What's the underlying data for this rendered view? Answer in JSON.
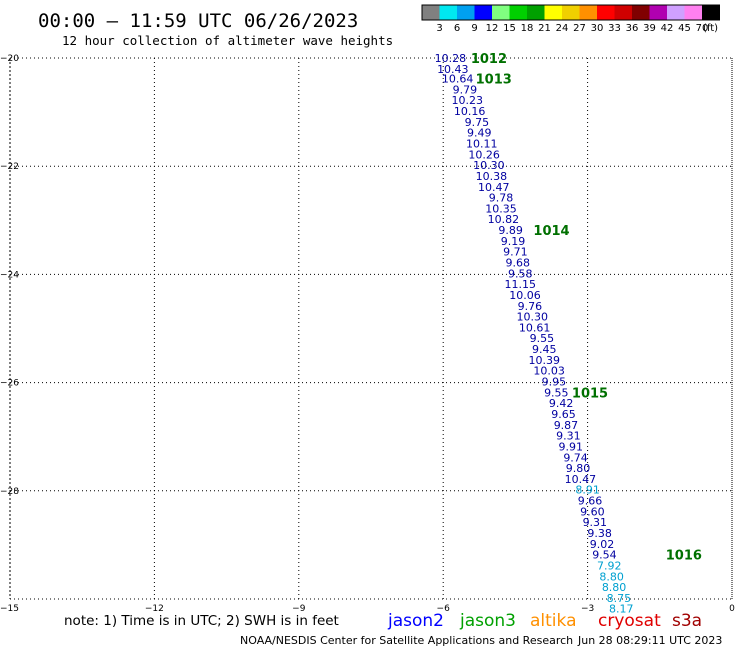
{
  "header": {
    "title": "00:00 – 11:59 UTC 06/26/2023",
    "subtitle": "12 hour collection of altimeter wave heights"
  },
  "legend": {
    "labels": [
      "3",
      "6",
      "9",
      "12",
      "15",
      "18",
      "21",
      "24",
      "27",
      "30",
      "33",
      "36",
      "39",
      "42",
      "45",
      "70"
    ],
    "unit": "(ft)",
    "colors": [
      "#808080",
      "#00e8f0",
      "#00a0f0",
      "#0000ff",
      "#80ff80",
      "#00d000",
      "#00a000",
      "#ffff00",
      "#f0d000",
      "#ff9000",
      "#ff0000",
      "#d00000",
      "#800000",
      "#b000b0",
      "#d0a0ff",
      "#ff80f0",
      "#000000"
    ]
  },
  "footer": {
    "note": "note: 1) Time is in UTC; 2) SWH is in feet",
    "satellites": [
      {
        "name": "jason2",
        "color": "#0000ff"
      },
      {
        "name": "jason3",
        "color": "#00a000"
      },
      {
        "name": "altika",
        "color": "#ff9000"
      },
      {
        "name": "cryosat",
        "color": "#e00000"
      },
      {
        "name": "s3a",
        "color": "#a00000"
      }
    ],
    "credit": "NOAA/NESDIS Center for Satellite Applications and Research",
    "timestamp": "Jun 28 08:29:11 UTC 2023"
  },
  "chart_data": {
    "type": "scatter",
    "title": "00:00 – 11:59 UTC 06/26/2023",
    "xlim": [
      -15,
      0
    ],
    "ylim": [
      -30,
      -20
    ],
    "x_ticks": [
      -15,
      -12,
      -9,
      -6,
      -3,
      0
    ],
    "y_ticks": [
      -30,
      -28,
      -26,
      -24,
      -22,
      -20
    ],
    "grid": true,
    "colors": {
      "jason3": "#0000a0",
      "altika": "#00a0d0",
      "time": "#007000"
    },
    "observations": [
      {
        "x": -5.85,
        "y": -20.0,
        "swh": "10.28",
        "sat": "jason3"
      },
      {
        "x": -5.8,
        "y": -20.2,
        "swh": "10.43",
        "sat": "jason3"
      },
      {
        "x": -5.7,
        "y": -20.38,
        "swh": "10.64",
        "sat": "jason3"
      },
      {
        "x": -5.55,
        "y": -20.58,
        "swh": "9.79",
        "sat": "jason3"
      },
      {
        "x": -5.5,
        "y": -20.78,
        "swh": "10.23",
        "sat": "jason3"
      },
      {
        "x": -5.45,
        "y": -20.98,
        "swh": "10.16",
        "sat": "jason3"
      },
      {
        "x": -5.3,
        "y": -21.18,
        "swh": "9.75",
        "sat": "jason3"
      },
      {
        "x": -5.25,
        "y": -21.38,
        "swh": "9.49",
        "sat": "jason3"
      },
      {
        "x": -5.2,
        "y": -21.58,
        "swh": "10.11",
        "sat": "jason3"
      },
      {
        "x": -5.15,
        "y": -21.78,
        "swh": "10.26",
        "sat": "jason3"
      },
      {
        "x": -5.05,
        "y": -21.98,
        "swh": "10.30",
        "sat": "jason3"
      },
      {
        "x": -5.0,
        "y": -22.18,
        "swh": "10.38",
        "sat": "jason3"
      },
      {
        "x": -4.95,
        "y": -22.38,
        "swh": "10.47",
        "sat": "jason3"
      },
      {
        "x": -4.8,
        "y": -22.58,
        "swh": "9.78",
        "sat": "jason3"
      },
      {
        "x": -4.8,
        "y": -22.78,
        "swh": "10.35",
        "sat": "jason3"
      },
      {
        "x": -4.75,
        "y": -22.98,
        "swh": "10.82",
        "sat": "jason3"
      },
      {
        "x": -4.6,
        "y": -23.18,
        "swh": "9.89",
        "sat": "jason3"
      },
      {
        "x": -4.55,
        "y": -23.38,
        "swh": "9.19",
        "sat": "jason3"
      },
      {
        "x": -4.5,
        "y": -23.58,
        "swh": "9.71",
        "sat": "jason3"
      },
      {
        "x": -4.45,
        "y": -23.78,
        "swh": "9.68",
        "sat": "jason3"
      },
      {
        "x": -4.4,
        "y": -23.98,
        "swh": "9.58",
        "sat": "jason3"
      },
      {
        "x": -4.4,
        "y": -24.18,
        "swh": "11.15",
        "sat": "jason3"
      },
      {
        "x": -4.3,
        "y": -24.38,
        "swh": "10.06",
        "sat": "jason3"
      },
      {
        "x": -4.2,
        "y": -24.58,
        "swh": "9.76",
        "sat": "jason3"
      },
      {
        "x": -4.15,
        "y": -24.78,
        "swh": "10.30",
        "sat": "jason3"
      },
      {
        "x": -4.1,
        "y": -24.98,
        "swh": "10.61",
        "sat": "jason3"
      },
      {
        "x": -3.95,
        "y": -25.18,
        "swh": "9.55",
        "sat": "jason3"
      },
      {
        "x": -3.9,
        "y": -25.38,
        "swh": "9.45",
        "sat": "jason3"
      },
      {
        "x": -3.9,
        "y": -25.58,
        "swh": "10.39",
        "sat": "jason3"
      },
      {
        "x": -3.8,
        "y": -25.78,
        "swh": "10.03",
        "sat": "jason3"
      },
      {
        "x": -3.7,
        "y": -25.98,
        "swh": "9.95",
        "sat": "jason3"
      },
      {
        "x": -3.65,
        "y": -26.18,
        "swh": "9.55",
        "sat": "jason3"
      },
      {
        "x": -3.55,
        "y": -26.38,
        "swh": "9.42",
        "sat": "jason3"
      },
      {
        "x": -3.5,
        "y": -26.58,
        "swh": "9.65",
        "sat": "jason3"
      },
      {
        "x": -3.45,
        "y": -26.78,
        "swh": "9.87",
        "sat": "jason3"
      },
      {
        "x": -3.4,
        "y": -26.98,
        "swh": "9.31",
        "sat": "jason3"
      },
      {
        "x": -3.35,
        "y": -27.18,
        "swh": "9.91",
        "sat": "jason3"
      },
      {
        "x": -3.25,
        "y": -27.38,
        "swh": "9.74",
        "sat": "jason3"
      },
      {
        "x": -3.2,
        "y": -27.58,
        "swh": "9.80",
        "sat": "jason3"
      },
      {
        "x": -3.15,
        "y": -27.78,
        "swh": "10.47",
        "sat": "jason3"
      },
      {
        "x": -3.0,
        "y": -27.98,
        "swh": "8.91",
        "sat": "altika"
      },
      {
        "x": -2.95,
        "y": -28.18,
        "swh": "9.66",
        "sat": "jason3"
      },
      {
        "x": -2.9,
        "y": -28.38,
        "swh": "9.60",
        "sat": "jason3"
      },
      {
        "x": -2.85,
        "y": -28.58,
        "swh": "9.31",
        "sat": "jason3"
      },
      {
        "x": -2.75,
        "y": -28.78,
        "swh": "9.38",
        "sat": "jason3"
      },
      {
        "x": -2.7,
        "y": -28.98,
        "swh": "9.02",
        "sat": "jason3"
      },
      {
        "x": -2.65,
        "y": -29.18,
        "swh": "9.54",
        "sat": "jason3"
      },
      {
        "x": -2.55,
        "y": -29.38,
        "swh": "7.92",
        "sat": "altika"
      },
      {
        "x": -2.5,
        "y": -29.58,
        "swh": "8.80",
        "sat": "altika"
      },
      {
        "x": -2.45,
        "y": -29.78,
        "swh": "8.80",
        "sat": "altika"
      },
      {
        "x": -2.35,
        "y": -29.98,
        "swh": "8.75",
        "sat": "altika"
      },
      {
        "x": -2.3,
        "y": -30.18,
        "swh": "8.17",
        "sat": "altika"
      }
    ],
    "time_labels": [
      {
        "x": -5.05,
        "y": -20.0,
        "label": "1012"
      },
      {
        "x": -4.95,
        "y": -20.38,
        "label": "1013"
      },
      {
        "x": -3.75,
        "y": -23.18,
        "label": "1014"
      },
      {
        "x": -2.95,
        "y": -26.18,
        "label": "1015"
      },
      {
        "x": -1.0,
        "y": -29.18,
        "label": "1016"
      }
    ]
  }
}
